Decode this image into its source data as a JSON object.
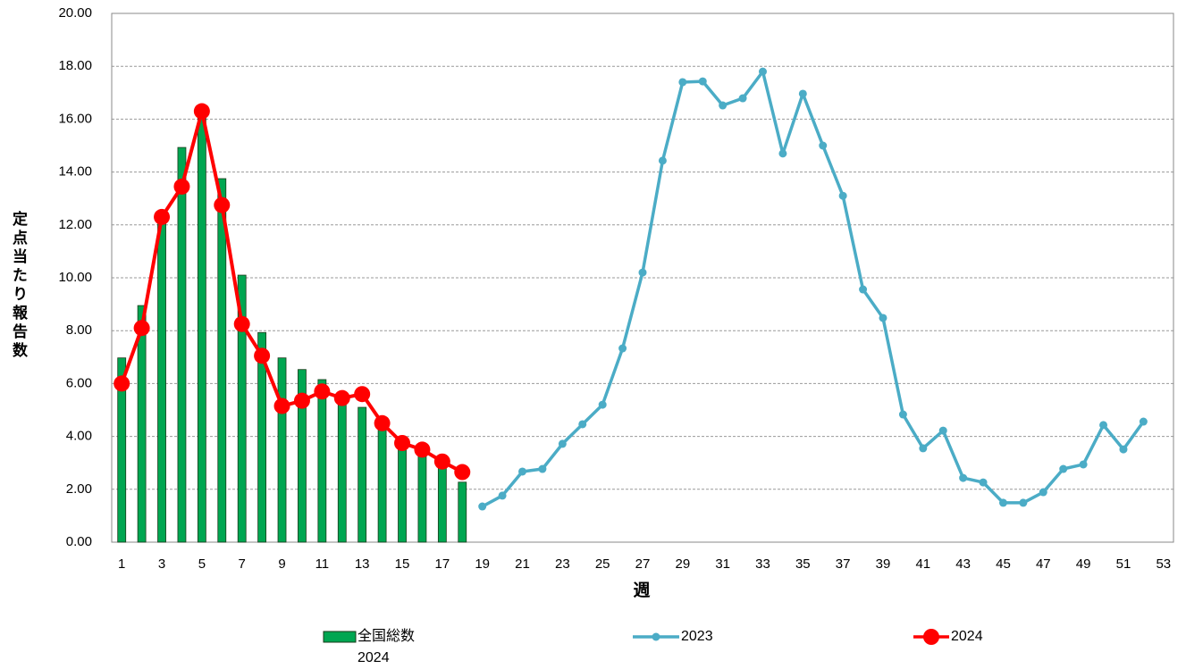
{
  "chart_data": {
    "type": "bar",
    "y_label": "定点当たり報告数",
    "x_label": "週",
    "categories": [
      1,
      null,
      3,
      null,
      5,
      null,
      7,
      null,
      9,
      null,
      11,
      null,
      13,
      null,
      15,
      null,
      17,
      null,
      19,
      null,
      21,
      null,
      23,
      null,
      25,
      null,
      27,
      null,
      29,
      null,
      31,
      null,
      33,
      null,
      35,
      null,
      37,
      null,
      39,
      null,
      41,
      null,
      43,
      null,
      45,
      null,
      47,
      null,
      49,
      null,
      51,
      null,
      53
    ],
    "ylim": [
      0,
      20
    ],
    "yticks": [
      {
        "value": 0,
        "label": "0.00"
      },
      {
        "value": 2,
        "label": "2.00"
      },
      {
        "value": 4,
        "label": "4.00"
      },
      {
        "value": 6,
        "label": "6.00"
      },
      {
        "value": 8,
        "label": "8.00"
      },
      {
        "value": 10,
        "label": "10.00"
      },
      {
        "value": 12,
        "label": "12.00"
      },
      {
        "value": 14,
        "label": "14.00"
      },
      {
        "value": 16,
        "label": "16.00"
      },
      {
        "value": 18,
        "label": "18.00"
      },
      {
        "value": 20,
        "label": "20.00"
      }
    ],
    "grid": true,
    "series": [
      {
        "name": "全国総数\n2024",
        "type": "bar",
        "color": "#00a651",
        "values": [
          6.97,
          8.95,
          12.2,
          14.93,
          16.1,
          13.75,
          10.1,
          7.93,
          6.97,
          6.53,
          6.15,
          5.5,
          5.1,
          4.4,
          3.8,
          3.4,
          3.0,
          2.27,
          null,
          null,
          null,
          null,
          null,
          null,
          null,
          null,
          null,
          null,
          null,
          null,
          null,
          null,
          null,
          null,
          null,
          null,
          null,
          null,
          null,
          null,
          null,
          null,
          null,
          null,
          null,
          null,
          null,
          null,
          null,
          null,
          null,
          null,
          null
        ]
      },
      {
        "name": "2023",
        "type": "line",
        "color": "#4bacc6",
        "values": [
          null,
          null,
          null,
          null,
          null,
          null,
          null,
          null,
          null,
          null,
          null,
          null,
          null,
          null,
          null,
          null,
          null,
          null,
          1.35,
          1.76,
          2.67,
          2.77,
          3.72,
          4.46,
          5.2,
          7.33,
          10.2,
          14.43,
          17.4,
          17.43,
          16.52,
          16.79,
          17.8,
          14.7,
          16.96,
          15.0,
          13.1,
          9.56,
          8.48,
          4.83,
          3.55,
          4.22,
          2.43,
          2.26,
          1.49,
          1.49,
          1.89,
          2.77,
          2.94,
          4.43,
          3.51,
          4.56,
          null
        ]
      },
      {
        "name": "2024",
        "type": "line",
        "color": "#ff0000",
        "values": [
          6.0,
          8.1,
          12.3,
          13.45,
          16.3,
          12.75,
          8.25,
          7.05,
          5.15,
          5.35,
          5.7,
          5.45,
          5.6,
          4.5,
          3.75,
          3.5,
          3.05,
          2.65,
          null,
          null,
          null,
          null,
          null,
          null,
          null,
          null,
          null,
          null,
          null,
          null,
          null,
          null,
          null,
          null,
          null,
          null,
          null,
          null,
          null,
          null,
          null,
          null,
          null,
          null,
          null,
          null,
          null,
          null,
          null,
          null,
          null,
          null,
          null
        ]
      }
    ]
  }
}
